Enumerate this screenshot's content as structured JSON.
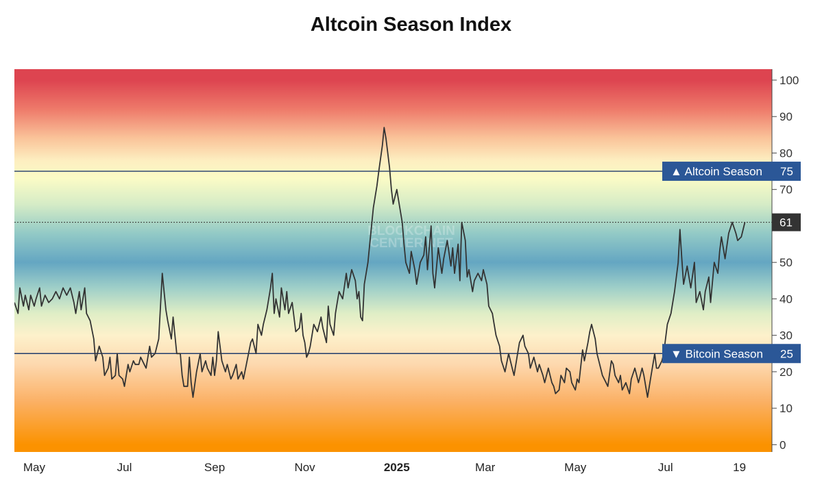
{
  "page": {
    "title": "Altcoin Season Index"
  },
  "watermark": [
    "BLOCKCHAIN",
    "CENTER.NET"
  ],
  "colors": {
    "threshold_line": "#1e3a6b",
    "badge_bg": "#2b5797",
    "current_badge_bg": "#333333",
    "series_line": "#333333",
    "gradient": [
      {
        "value": 100,
        "color": "#dd4450"
      },
      {
        "value": 92,
        "color": "#ee7a6a"
      },
      {
        "value": 84,
        "color": "#fac49a"
      },
      {
        "value": 78,
        "color": "#fdeec0"
      },
      {
        "value": 73,
        "color": "#fbfbc6"
      },
      {
        "value": 66,
        "color": "#d6ecc6"
      },
      {
        "value": 58,
        "color": "#93cac6"
      },
      {
        "value": 50,
        "color": "#64a6c2"
      },
      {
        "value": 43,
        "color": "#9fcfc8"
      },
      {
        "value": 36,
        "color": "#dfeec6"
      },
      {
        "value": 30,
        "color": "#fdf1cb"
      },
      {
        "value": 22,
        "color": "#fdd8ae"
      },
      {
        "value": 12,
        "color": "#fbb166"
      },
      {
        "value": 0,
        "color": "#fb9200"
      }
    ]
  },
  "chart_data": {
    "type": "line",
    "title": "Altcoin Season Index",
    "xlabel": "",
    "ylabel": "",
    "ylim": [
      -2,
      103
    ],
    "xlim": [
      0,
      420
    ],
    "yticks": [
      0,
      10,
      20,
      30,
      40,
      50,
      60,
      70,
      80,
      90,
      100
    ],
    "xticks": [
      {
        "label": "May",
        "x": 11,
        "bold": false
      },
      {
        "label": "Jul",
        "x": 61,
        "bold": false
      },
      {
        "label": "Sep",
        "x": 111,
        "bold": false
      },
      {
        "label": "Nov",
        "x": 161,
        "bold": false
      },
      {
        "label": "2025",
        "x": 212,
        "bold": true
      },
      {
        "label": "Mar",
        "x": 261,
        "bold": false
      },
      {
        "label": "May",
        "x": 311,
        "bold": false
      },
      {
        "label": "Jul",
        "x": 361,
        "bold": false
      },
      {
        "label": "19",
        "x": 402,
        "bold": false
      }
    ],
    "thresholds": [
      {
        "label": "▲ Altcoin Season",
        "value": 75,
        "value_label": "75"
      },
      {
        "label": "▼ Bitcoin Season",
        "value": 25,
        "value_label": "25"
      }
    ],
    "current": {
      "value": 61,
      "label": "61"
    },
    "series": [
      {
        "name": "Altcoin Season Index",
        "points": [
          [
            0,
            39
          ],
          [
            2,
            36
          ],
          [
            3,
            43
          ],
          [
            5,
            38
          ],
          [
            6,
            41
          ],
          [
            8,
            37
          ],
          [
            9,
            41
          ],
          [
            11,
            38
          ],
          [
            12,
            40
          ],
          [
            14,
            43
          ],
          [
            15,
            38
          ],
          [
            17,
            41
          ],
          [
            19,
            39
          ],
          [
            21,
            40
          ],
          [
            23,
            42
          ],
          [
            25,
            40
          ],
          [
            27,
            43
          ],
          [
            29,
            41
          ],
          [
            31,
            43
          ],
          [
            33,
            39
          ],
          [
            34,
            36
          ],
          [
            36,
            42
          ],
          [
            37,
            37
          ],
          [
            39,
            43
          ],
          [
            40,
            36
          ],
          [
            42,
            34
          ],
          [
            44,
            29
          ],
          [
            45,
            23
          ],
          [
            47,
            27
          ],
          [
            49,
            24
          ],
          [
            50,
            19
          ],
          [
            52,
            21
          ],
          [
            53,
            24
          ],
          [
            54,
            18
          ],
          [
            56,
            19
          ],
          [
            57,
            25
          ],
          [
            58,
            19
          ],
          [
            60,
            18
          ],
          [
            61,
            16
          ],
          [
            63,
            22
          ],
          [
            64,
            20
          ],
          [
            66,
            23
          ],
          [
            67,
            22
          ],
          [
            69,
            22
          ],
          [
            70,
            24
          ],
          [
            72,
            22
          ],
          [
            73,
            21
          ],
          [
            75,
            27
          ],
          [
            76,
            24
          ],
          [
            78,
            25
          ],
          [
            80,
            29
          ],
          [
            81,
            38
          ],
          [
            82,
            47
          ],
          [
            84,
            37
          ],
          [
            85,
            34
          ],
          [
            87,
            29
          ],
          [
            88,
            35
          ],
          [
            90,
            25
          ],
          [
            92,
            25
          ],
          [
            93,
            19
          ],
          [
            94,
            16
          ],
          [
            96,
            16
          ],
          [
            97,
            24
          ],
          [
            98,
            17
          ],
          [
            99,
            13
          ],
          [
            101,
            20
          ],
          [
            103,
            25
          ],
          [
            104,
            20
          ],
          [
            106,
            23
          ],
          [
            107,
            21
          ],
          [
            109,
            19
          ],
          [
            110,
            24
          ],
          [
            111,
            19
          ],
          [
            112,
            23
          ],
          [
            113,
            31
          ],
          [
            115,
            23
          ],
          [
            117,
            20
          ],
          [
            118,
            22
          ],
          [
            120,
            18
          ],
          [
            121,
            19
          ],
          [
            123,
            22
          ],
          [
            124,
            18
          ],
          [
            126,
            20
          ],
          [
            127,
            18
          ],
          [
            129,
            23
          ],
          [
            131,
            28
          ],
          [
            132,
            29
          ],
          [
            134,
            25
          ],
          [
            135,
            33
          ],
          [
            137,
            30
          ],
          [
            138,
            33
          ],
          [
            140,
            37
          ],
          [
            142,
            43
          ],
          [
            143,
            47
          ],
          [
            144,
            36
          ],
          [
            145,
            40
          ],
          [
            147,
            35
          ],
          [
            148,
            43
          ],
          [
            150,
            37
          ],
          [
            151,
            42
          ],
          [
            152,
            36
          ],
          [
            154,
            39
          ],
          [
            156,
            31
          ],
          [
            158,
            32
          ],
          [
            159,
            36
          ],
          [
            160,
            30
          ],
          [
            161,
            28
          ],
          [
            162,
            24
          ],
          [
            163,
            25
          ],
          [
            164,
            27
          ],
          [
            166,
            33
          ],
          [
            168,
            31
          ],
          [
            170,
            35
          ],
          [
            171,
            32
          ],
          [
            173,
            28
          ],
          [
            174,
            38
          ],
          [
            175,
            33
          ],
          [
            177,
            30
          ],
          [
            178,
            36
          ],
          [
            179,
            39
          ],
          [
            180,
            42
          ],
          [
            182,
            40
          ],
          [
            184,
            47
          ],
          [
            185,
            43
          ],
          [
            187,
            48
          ],
          [
            189,
            45
          ],
          [
            190,
            40
          ],
          [
            191,
            42
          ],
          [
            192,
            35
          ],
          [
            193,
            34
          ],
          [
            194,
            44
          ],
          [
            196,
            50
          ],
          [
            197,
            55
          ],
          [
            199,
            65
          ],
          [
            201,
            71
          ],
          [
            202,
            75
          ],
          [
            204,
            82
          ],
          [
            205,
            87
          ],
          [
            206,
            84
          ],
          [
            208,
            76
          ],
          [
            209,
            70
          ],
          [
            210,
            66
          ],
          [
            212,
            70
          ],
          [
            213,
            67
          ],
          [
            215,
            61
          ],
          [
            216,
            55
          ],
          [
            217,
            50
          ],
          [
            219,
            47
          ],
          [
            220,
            53
          ],
          [
            222,
            48
          ],
          [
            223,
            44
          ],
          [
            225,
            50
          ],
          [
            227,
            52
          ],
          [
            228,
            57
          ],
          [
            229,
            48
          ],
          [
            231,
            60
          ],
          [
            232,
            47
          ],
          [
            233,
            43
          ],
          [
            235,
            54
          ],
          [
            237,
            47
          ],
          [
            238,
            51
          ],
          [
            240,
            56
          ],
          [
            242,
            49
          ],
          [
            243,
            54
          ],
          [
            244,
            47
          ],
          [
            246,
            55
          ],
          [
            247,
            45
          ],
          [
            248,
            61
          ],
          [
            250,
            56
          ],
          [
            251,
            46
          ],
          [
            252,
            48
          ],
          [
            254,
            42
          ],
          [
            255,
            45
          ],
          [
            257,
            47
          ],
          [
            259,
            45
          ],
          [
            260,
            48
          ],
          [
            262,
            44
          ],
          [
            263,
            38
          ],
          [
            265,
            36
          ],
          [
            266,
            33
          ],
          [
            267,
            30
          ],
          [
            269,
            27
          ],
          [
            270,
            23
          ],
          [
            272,
            20
          ],
          [
            274,
            25
          ],
          [
            276,
            21
          ],
          [
            277,
            19
          ],
          [
            279,
            25
          ],
          [
            280,
            28
          ],
          [
            282,
            30
          ],
          [
            283,
            27
          ],
          [
            285,
            25
          ],
          [
            286,
            21
          ],
          [
            288,
            24
          ],
          [
            290,
            20
          ],
          [
            291,
            22
          ],
          [
            293,
            19
          ],
          [
            294,
            17
          ],
          [
            296,
            21
          ],
          [
            298,
            17
          ],
          [
            299,
            16
          ],
          [
            300,
            14
          ],
          [
            302,
            15
          ],
          [
            303,
            19
          ],
          [
            305,
            17
          ],
          [
            306,
            21
          ],
          [
            308,
            20
          ],
          [
            309,
            17
          ],
          [
            311,
            15
          ],
          [
            312,
            18
          ],
          [
            313,
            17
          ],
          [
            315,
            26
          ],
          [
            316,
            23
          ],
          [
            318,
            28
          ],
          [
            319,
            31
          ],
          [
            320,
            33
          ],
          [
            322,
            29
          ],
          [
            323,
            25
          ],
          [
            325,
            21
          ],
          [
            326,
            19
          ],
          [
            328,
            17
          ],
          [
            329,
            16
          ],
          [
            331,
            23
          ],
          [
            332,
            22
          ],
          [
            333,
            19
          ],
          [
            335,
            17
          ],
          [
            336,
            19
          ],
          [
            337,
            15
          ],
          [
            339,
            17
          ],
          [
            341,
            14
          ],
          [
            342,
            18
          ],
          [
            344,
            21
          ],
          [
            345,
            19
          ],
          [
            346,
            17
          ],
          [
            348,
            21
          ],
          [
            349,
            19
          ],
          [
            351,
            13
          ],
          [
            352,
            16
          ],
          [
            353,
            19
          ],
          [
            355,
            25
          ],
          [
            356,
            21
          ],
          [
            357,
            21
          ],
          [
            359,
            23
          ],
          [
            360,
            25
          ],
          [
            362,
            33
          ],
          [
            364,
            36
          ],
          [
            365,
            39
          ],
          [
            366,
            42
          ],
          [
            368,
            50
          ],
          [
            369,
            59
          ],
          [
            370,
            51
          ],
          [
            371,
            44
          ],
          [
            373,
            49
          ],
          [
            375,
            43
          ],
          [
            377,
            50
          ],
          [
            378,
            39
          ],
          [
            380,
            42
          ],
          [
            382,
            37
          ],
          [
            383,
            42
          ],
          [
            385,
            46
          ],
          [
            386,
            39
          ],
          [
            388,
            50
          ],
          [
            390,
            47
          ],
          [
            391,
            53
          ],
          [
            392,
            57
          ],
          [
            394,
            51
          ],
          [
            396,
            58
          ],
          [
            398,
            61
          ],
          [
            400,
            58
          ],
          [
            401,
            56
          ],
          [
            403,
            57
          ],
          [
            405,
            61
          ]
        ]
      }
    ]
  }
}
